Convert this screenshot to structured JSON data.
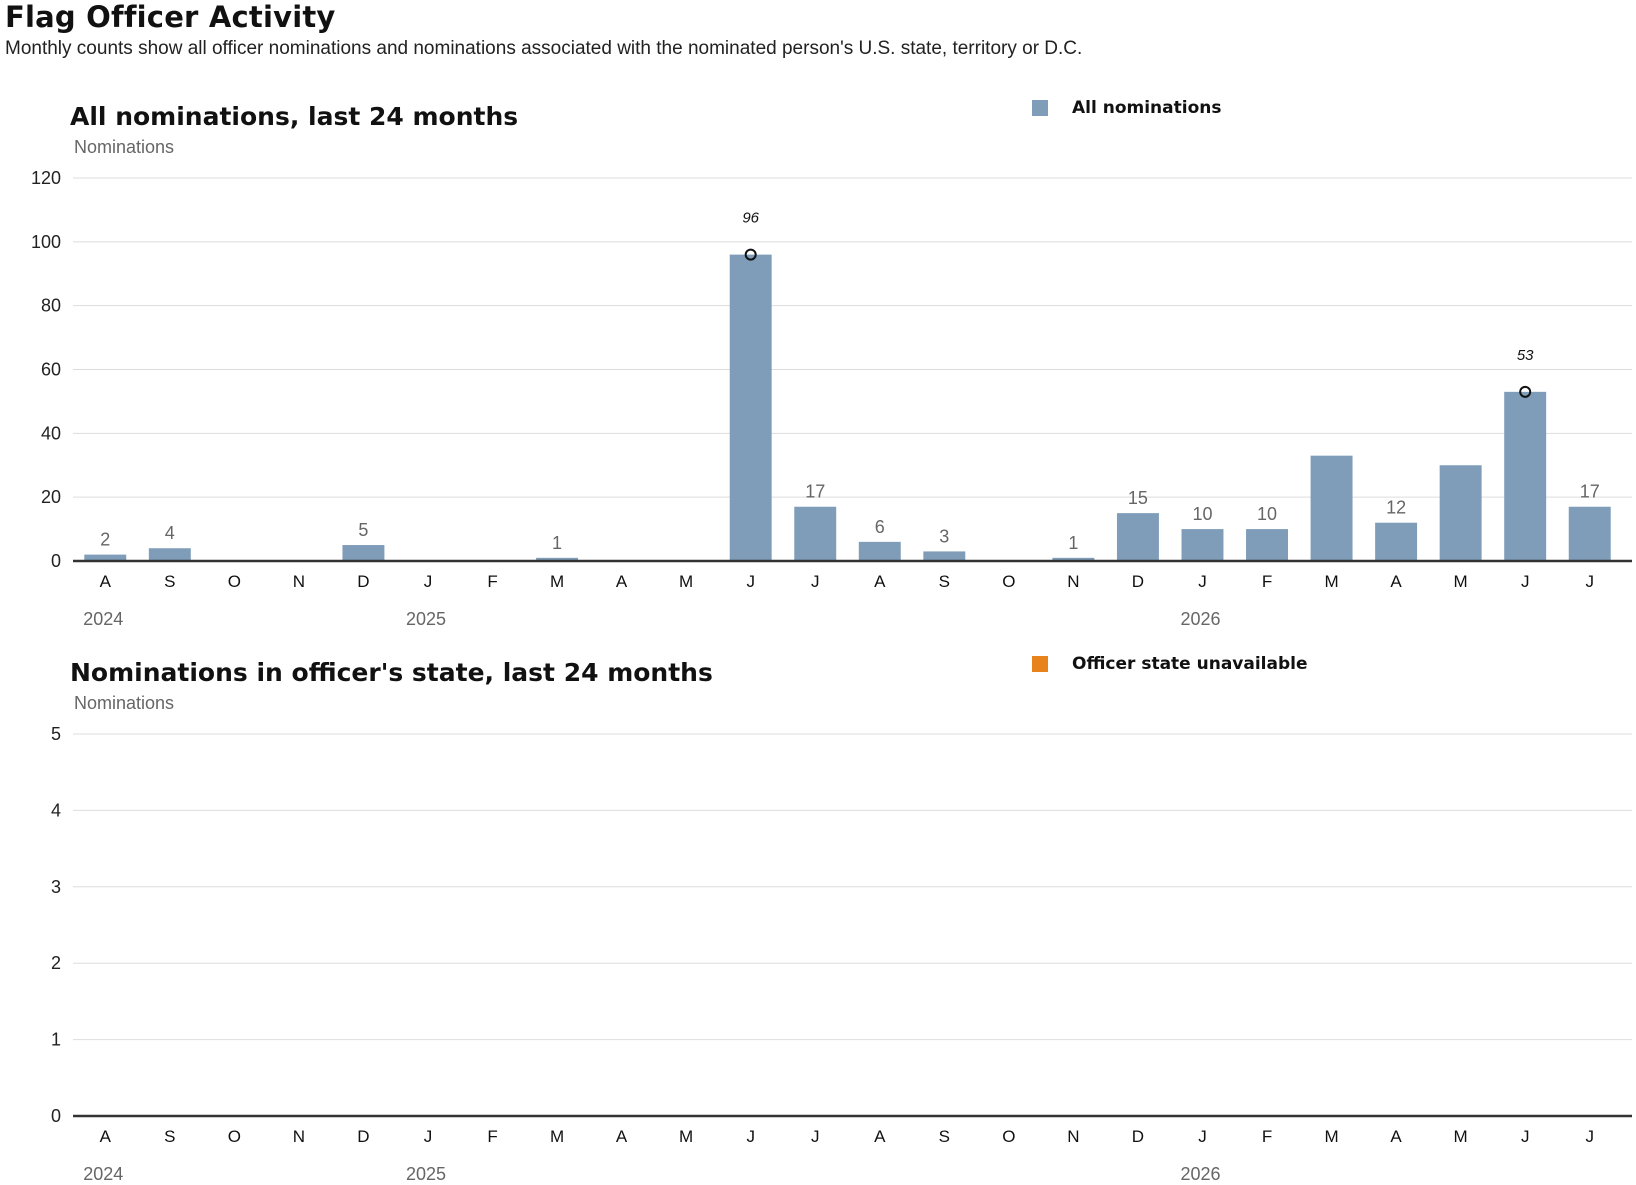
{
  "header": {
    "title": "Flag Officer Activity",
    "subtitle": "Monthly counts show all officer nominations and nominations associated with the nominated person's U.S. state, territory or D.C."
  },
  "colors": {
    "bar": "#7f9db9",
    "unavailable": "#e8821a",
    "grid": "#dddddd",
    "baseline": "#333333"
  },
  "chart_data": [
    {
      "type": "bar",
      "title": "All nominations, last 24 months",
      "ylabel": "Nominations",
      "ylim": [
        0,
        120
      ],
      "yticks": [
        0,
        20,
        40,
        60,
        80,
        100,
        120
      ],
      "grid": true,
      "legend": {
        "placement": "top-right",
        "label": "All nominations"
      },
      "categories": [
        "A",
        "S",
        "O",
        "N",
        "D",
        "J",
        "F",
        "M",
        "A",
        "M",
        "J",
        "J",
        "A",
        "S",
        "O",
        "N",
        "D",
        "J",
        "F",
        "M",
        "A",
        "M",
        "J",
        "J"
      ],
      "year_labels": [
        {
          "index": 0,
          "label": "2024"
        },
        {
          "index": 5,
          "label": "2025"
        },
        {
          "index": 17,
          "label": "2026"
        }
      ],
      "series": [
        {
          "name": "All nominations",
          "values": [
            2,
            4,
            0,
            0,
            5,
            0,
            0,
            1,
            0,
            0,
            96,
            17,
            6,
            3,
            0,
            1,
            15,
            10,
            10,
            33,
            12,
            30,
            53,
            17
          ]
        }
      ],
      "data_labels": [
        {
          "index": 0,
          "label": "2"
        },
        {
          "index": 1,
          "label": "4"
        },
        {
          "index": 4,
          "label": "5"
        },
        {
          "index": 7,
          "label": "1"
        },
        {
          "index": 11,
          "label": "17"
        },
        {
          "index": 12,
          "label": "6"
        },
        {
          "index": 13,
          "label": "3"
        },
        {
          "index": 15,
          "label": "1"
        },
        {
          "index": 16,
          "label": "15"
        },
        {
          "index": 17,
          "label": "10"
        },
        {
          "index": 18,
          "label": "10"
        },
        {
          "index": 20,
          "label": "12"
        },
        {
          "index": 23,
          "label": "17"
        }
      ],
      "annotations": [
        {
          "index": 10,
          "label": "96"
        },
        {
          "index": 22,
          "label": "53"
        }
      ]
    },
    {
      "type": "bar",
      "title": "Nominations in officer's state, last 24 months",
      "ylabel": "Nominations",
      "ylim": [
        0,
        5
      ],
      "yticks": [
        0,
        1,
        2,
        3,
        4,
        5
      ],
      "grid": true,
      "legend": {
        "placement": "top-right",
        "label": "Officer state unavailable"
      },
      "categories": [
        "A",
        "S",
        "O",
        "N",
        "D",
        "J",
        "F",
        "M",
        "A",
        "M",
        "J",
        "J",
        "A",
        "S",
        "O",
        "N",
        "D",
        "J",
        "F",
        "M",
        "A",
        "M",
        "J",
        "J"
      ],
      "year_labels": [
        {
          "index": 0,
          "label": "2024"
        },
        {
          "index": 5,
          "label": "2025"
        },
        {
          "index": 17,
          "label": "2026"
        }
      ],
      "series": [
        {
          "name": "Officer state unavailable",
          "values": [
            0,
            0,
            0,
            0,
            0,
            0,
            0,
            0,
            0,
            0,
            0,
            0,
            0,
            0,
            0,
            0,
            0,
            0,
            0,
            0,
            0,
            0,
            0,
            0
          ]
        }
      ],
      "data_labels": [],
      "annotations": []
    }
  ]
}
